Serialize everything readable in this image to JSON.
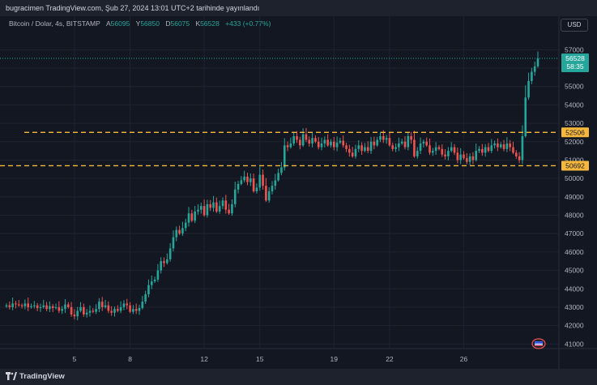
{
  "header": {
    "publish_info": "bugracimen TradingView.com, Şub 27, 2024 13:01 UTC+2 tarihinde yayınlandı"
  },
  "legend": {
    "symbol": "Bitcoin / Dolar, 4s, BITSTAMP",
    "open_label": "A",
    "open_value": "56095",
    "high_label": "Y",
    "high_value": "56850",
    "low_label": "D",
    "low_value": "56075",
    "close_label": "K",
    "close_value": "56528",
    "change": "+433 (+0.77%)"
  },
  "toolbar": {
    "currency": "USD"
  },
  "footer": {
    "brand": "TradingView"
  },
  "colors": {
    "up": "#26a69a",
    "down": "#ef5350",
    "level_line": "#f5b83d",
    "background": "#131722",
    "grid": "#1f2330",
    "axis_text": "#b2b5be"
  },
  "chart_data": {
    "type": "candlestick",
    "title": "Bitcoin / Dolar, 4s, BITSTAMP",
    "ylim": [
      40750,
      57500
    ],
    "y_ticks": [
      41000,
      42000,
      43000,
      44000,
      45000,
      46000,
      47000,
      48000,
      49000,
      50000,
      51000,
      52000,
      53000,
      54000,
      55000,
      56000,
      57000
    ],
    "x_ticks": [
      {
        "label": "5",
        "index": 22
      },
      {
        "label": "8",
        "index": 40
      },
      {
        "label": "12",
        "index": 64
      },
      {
        "label": "15",
        "index": 82
      },
      {
        "label": "19",
        "index": 106
      },
      {
        "label": "22",
        "index": 124
      },
      {
        "label": "26",
        "index": 148
      }
    ],
    "levels": [
      {
        "value": 52506,
        "label": "52506"
      },
      {
        "value": 50692,
        "label": "50692"
      }
    ],
    "last_price": {
      "value": 56528,
      "label": "56528",
      "countdown": "58:35"
    },
    "closes": [
      43100,
      43000,
      43200,
      43150,
      43100,
      43050,
      43200,
      43000,
      43050,
      43100,
      42950,
      43000,
      43100,
      42900,
      43050,
      42950,
      43000,
      42800,
      42900,
      43150,
      43000,
      42600,
      42500,
      42800,
      43000,
      42600,
      42700,
      42800,
      42750,
      42900,
      43300,
      43000,
      43100,
      42800,
      42700,
      42900,
      42800,
      43000,
      43200,
      43100,
      42750,
      42900,
      42800,
      42950,
      43300,
      43700,
      44200,
      44400,
      44500,
      45000,
      45500,
      45400,
      45600,
      46200,
      46800,
      47200,
      47000,
      47300,
      47600,
      48100,
      47700,
      48200,
      48300,
      48500,
      48000,
      48600,
      48400,
      48700,
      48200,
      48500,
      48800,
      48300,
      48100,
      48600,
      49400,
      49700,
      49900,
      50100,
      49800,
      50000,
      49300,
      49500,
      50200,
      49600,
      48800,
      49300,
      49600,
      49900,
      50300,
      50600,
      51800,
      51700,
      51900,
      52300,
      52100,
      51800,
      52400,
      52100,
      51900,
      52200,
      52000,
      51700,
      51900,
      52100,
      51800,
      52000,
      51700,
      51950,
      52050,
      51800,
      51600,
      51400,
      51200,
      51600,
      51800,
      51500,
      51700,
      51500,
      52000,
      51800,
      52100,
      52300,
      52100,
      52200,
      51800,
      51600,
      51700,
      51900,
      52000,
      51700,
      52300,
      52100,
      51200,
      51500,
      51900,
      52000,
      51800,
      51400,
      51500,
      51700,
      51600,
      51300,
      51200,
      51500,
      51700,
      51400,
      51000,
      51300,
      51100,
      50900,
      51200,
      51000,
      51500,
      51600,
      51400,
      51700,
      51500,
      51800,
      51900,
      51700,
      51850,
      51600,
      51900,
      51700,
      51400,
      51200,
      51000,
      52300,
      54400,
      55300,
      55800,
      56095,
      56528
    ],
    "opens_note": "open of each candle equals previous close"
  }
}
